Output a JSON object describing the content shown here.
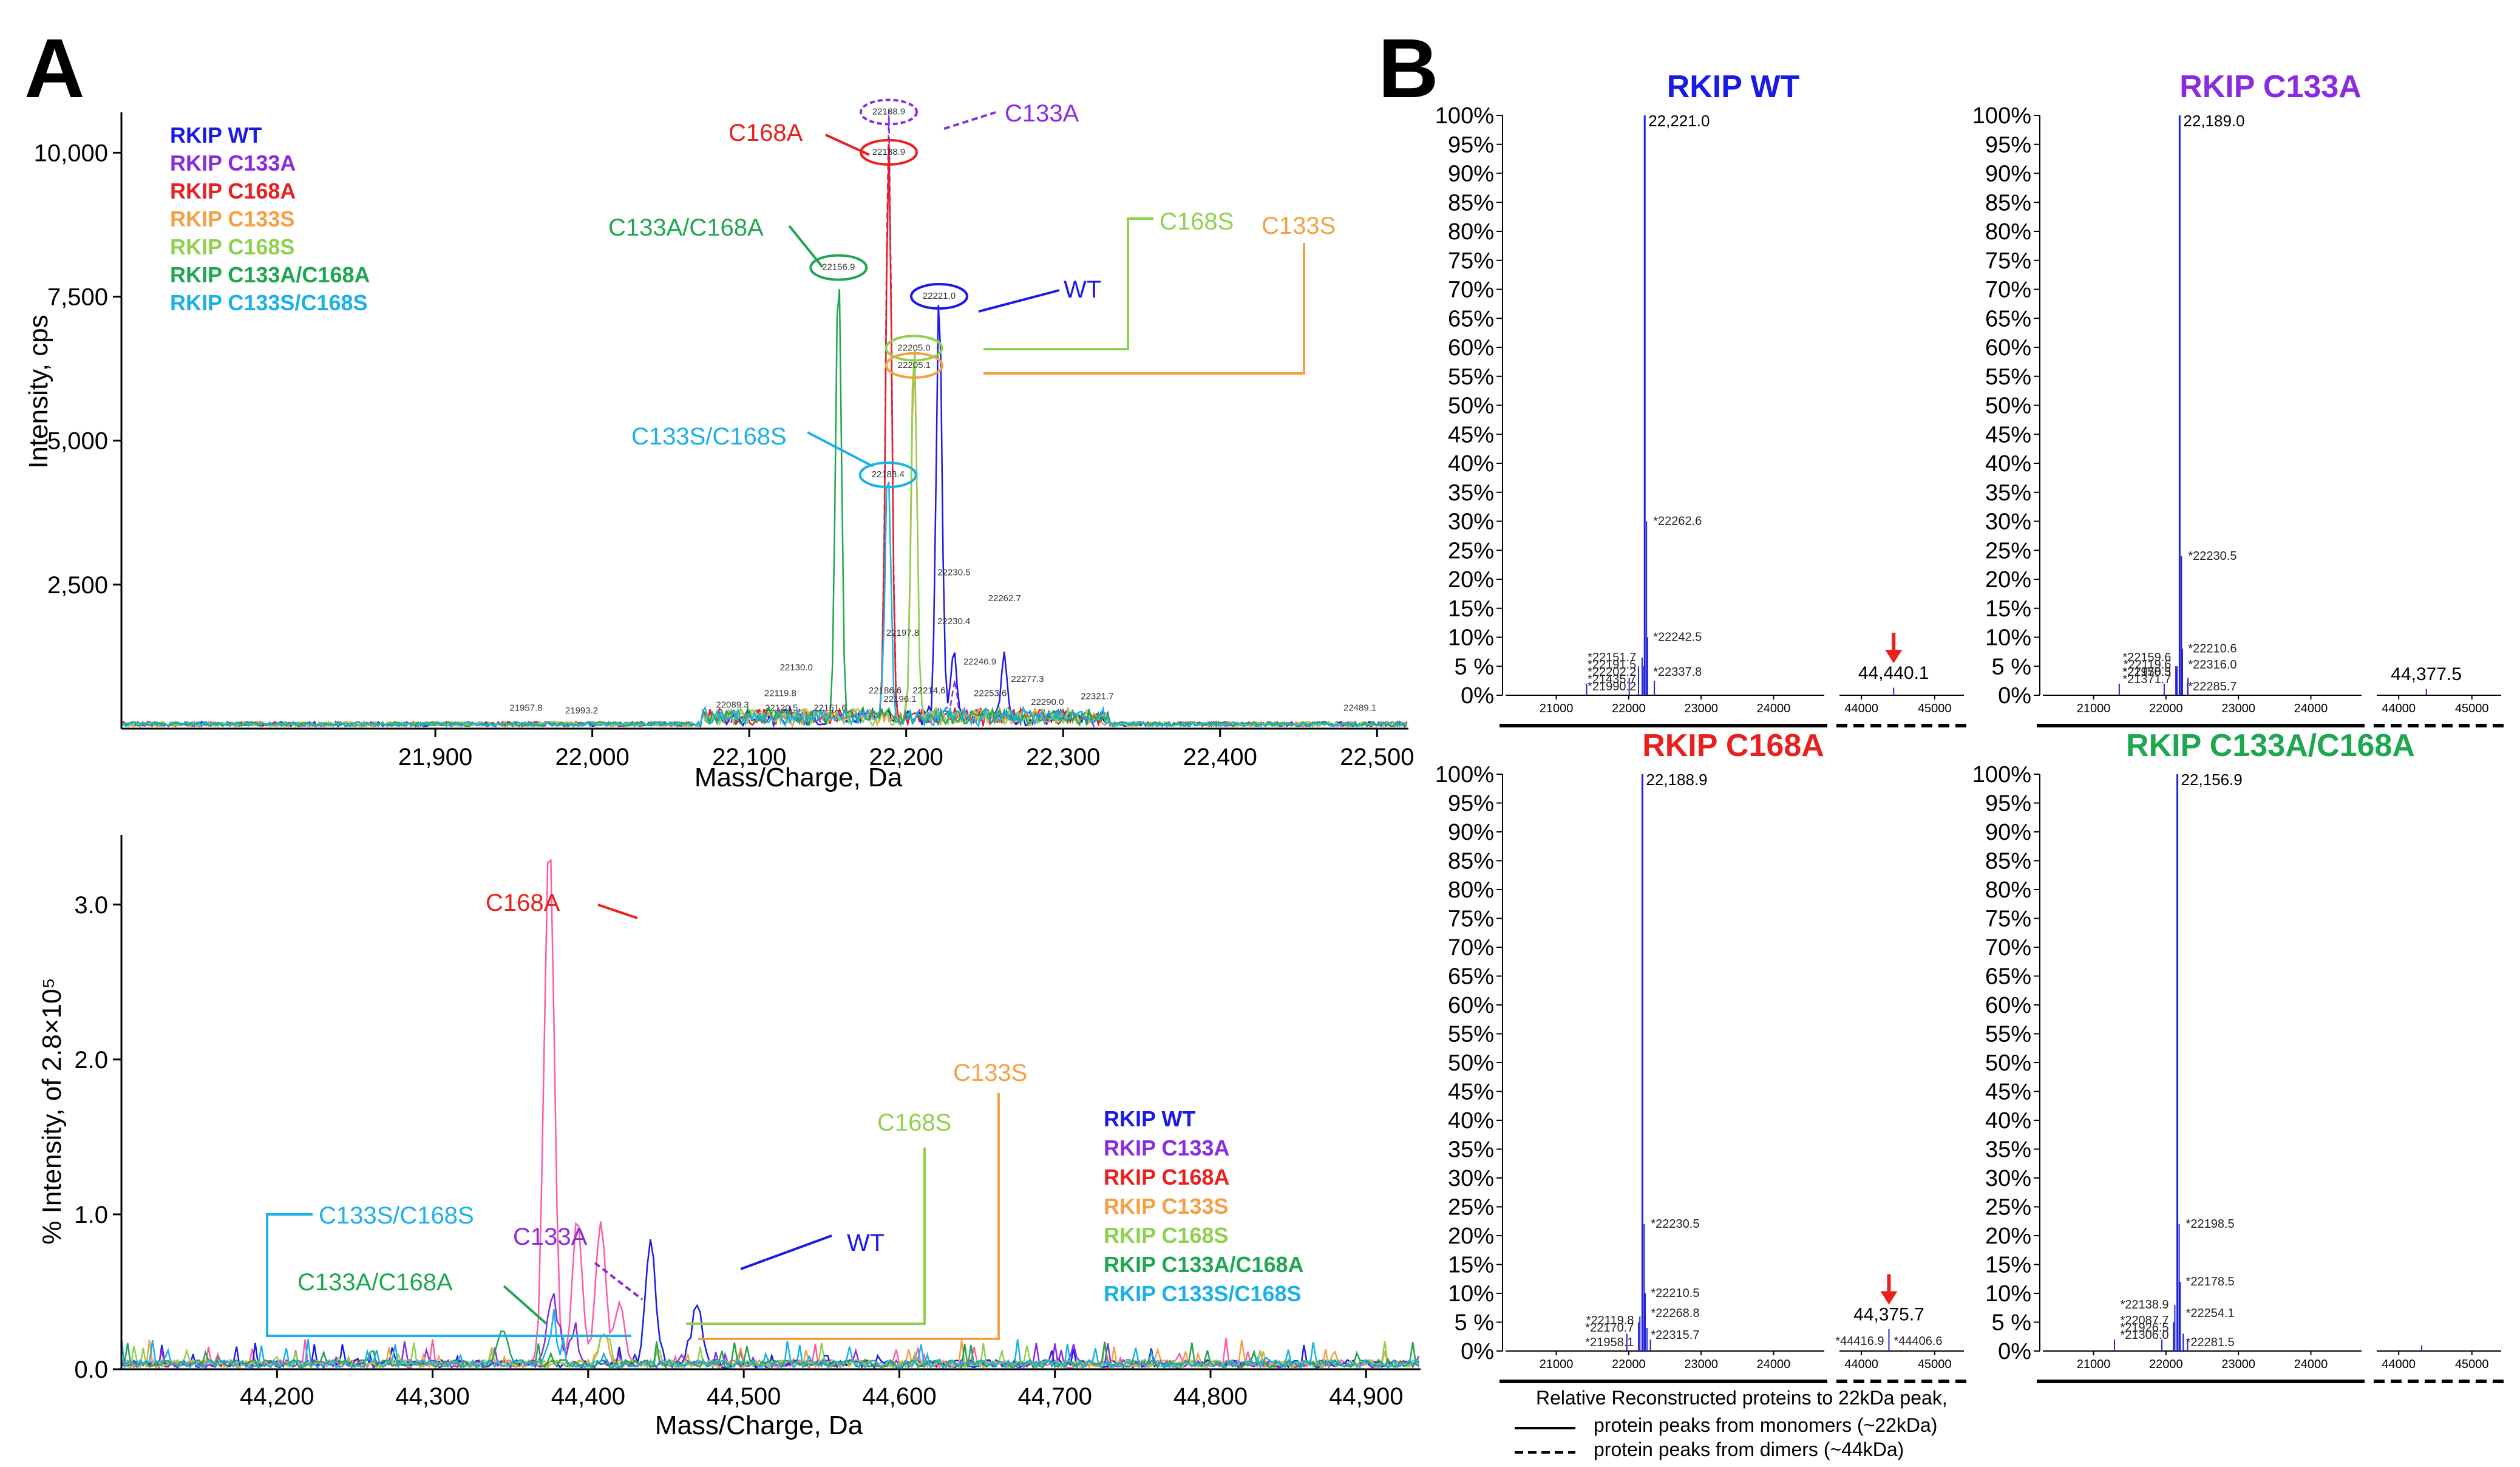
{
  "colors": {
    "WT": "#1a1ae6",
    "C133A": "#8a2be2",
    "C168A": "#e8201e",
    "C133S": "#f5a042",
    "C168S": "#8fd14f",
    "C133A/C168A": "#1fa650",
    "C133S/C168S": "#1ab0e8",
    "pinkTrace": "#ff5aa8",
    "marker": "#e8201e"
  },
  "panelA": {
    "letter": "A",
    "legend": [
      "RKIP WT",
      "RKIP C133A",
      "RKIP C168A",
      "RKIP C133S",
      "RKIP C168S",
      "RKIP C133A/C168A",
      "RKIP C133S/C168S"
    ],
    "legend_keys": [
      "WT",
      "C133A",
      "C168A",
      "C133S",
      "C168S",
      "C133A/C168A",
      "C133S/C168S"
    ]
  },
  "panelB": {
    "letter": "B",
    "titles": [
      "RKIP WT",
      "RKIP C133A",
      "RKIP C168A",
      "RKIP C133A/C168A"
    ],
    "title_keys": [
      "WT",
      "C133A",
      "C168A",
      "C133A/C168A"
    ],
    "yticks": [
      "100%",
      "95%",
      "90%",
      "85%",
      "80%",
      "75%",
      "70%",
      "65%",
      "60%",
      "55%",
      "50%",
      "45%",
      "40%",
      "35%",
      "30%",
      "25%",
      "20%",
      "15%",
      "10%",
      "5 %",
      "0%"
    ],
    "mono_xticks": [
      "21000",
      "22000",
      "23000",
      "24000"
    ],
    "dimer_xticks": [
      "44000",
      "45000"
    ],
    "note_title": "Relative Reconstructed proteins to 22kDa peak,",
    "note_solid": "protein peaks from monomers (~22kDa)",
    "note_dashed": "protein peaks from dimers (~44kDa)"
  },
  "chart_data": [
    {
      "type": "line",
      "panel": "A-top",
      "xlabel": "Mass/Charge, Da",
      "ylabel": "Intensity, cps",
      "xlim": [
        21700,
        22520
      ],
      "ylim": [
        0,
        10700
      ],
      "xticks": [
        "21,900",
        "22,000",
        "22,100",
        "22,200",
        "22,300",
        "22,400",
        "22,500"
      ],
      "yticks": [
        "2,500",
        "5,000",
        "7,500",
        "10,000"
      ],
      "series": [
        {
          "name": "WT",
          "peaks": [
            [
              22221.0,
              7400
            ],
            [
              22262.7,
              1000
            ],
            [
              22230.5,
              1100
            ]
          ]
        },
        {
          "name": "C133A",
          "peaks": [
            [
              22188.9,
              10600
            ],
            [
              22230.4,
              600
            ]
          ]
        },
        {
          "name": "C168A",
          "peaks": [
            [
              22188.9,
              9900
            ]
          ]
        },
        {
          "name": "C133S",
          "peaks": [
            [
              22205.1,
              6200
            ]
          ]
        },
        {
          "name": "C168S",
          "peaks": [
            [
              22205.0,
              6500
            ]
          ]
        },
        {
          "name": "C133A/C168A",
          "peaks": [
            [
              22156.9,
              7900
            ]
          ]
        },
        {
          "name": "C133S/C168S",
          "peaks": [
            [
              22188.4,
              4300
            ]
          ]
        }
      ],
      "peak_labels": [
        {
          "x": 22188.9,
          "y": 10600,
          "text": "22188.9"
        },
        {
          "x": 22188.9,
          "y": 9900,
          "text": "22188.9"
        },
        {
          "x": 22156.9,
          "y": 7900,
          "text": "22156.9"
        },
        {
          "x": 22221.0,
          "y": 7400,
          "text": "22221.0"
        },
        {
          "x": 22205.0,
          "y": 6500,
          "text": "22205.0"
        },
        {
          "x": 22205.1,
          "y": 6200,
          "text": "22205.1"
        },
        {
          "x": 22188.4,
          "y": 4300,
          "text": "22188.4"
        },
        {
          "x": 22230.5,
          "y": 2600,
          "text": "22230.5"
        },
        {
          "x": 22262.7,
          "y": 2150,
          "text": "22262.7"
        },
        {
          "x": 22230.4,
          "y": 1750,
          "text": "22230.4"
        },
        {
          "x": 22197.8,
          "y": 1550,
          "text": "22197.8"
        },
        {
          "x": 22246.9,
          "y": 1050,
          "text": "22246.9"
        },
        {
          "x": 22130.0,
          "y": 950,
          "text": "22130.0"
        },
        {
          "x": 22277.3,
          "y": 750,
          "text": "22277.3"
        },
        {
          "x": 22186.6,
          "y": 550,
          "text": "22186.6"
        },
        {
          "x": 22214.6,
          "y": 550,
          "text": "22214.6"
        },
        {
          "x": 22253.6,
          "y": 500,
          "text": "22253.6"
        },
        {
          "x": 22119.8,
          "y": 500,
          "text": "22119.8"
        },
        {
          "x": 22321.7,
          "y": 450,
          "text": "22321.7"
        },
        {
          "x": 22196.1,
          "y": 400,
          "text": "22196.1"
        },
        {
          "x": 22290.0,
          "y": 350,
          "text": "22290.0"
        },
        {
          "x": 22089.3,
          "y": 300,
          "text": "22089.3"
        },
        {
          "x": 22120.5,
          "y": 250,
          "text": "22120.5"
        },
        {
          "x": 22151.6,
          "y": 250,
          "text": "22151.6"
        },
        {
          "x": 21957.8,
          "y": 250,
          "text": "21957.8"
        },
        {
          "x": 21993.2,
          "y": 200,
          "text": "21993.2"
        },
        {
          "x": 22489.1,
          "y": 250,
          "text": "22489.1"
        }
      ],
      "callouts": [
        "C168A",
        "C133A",
        "C133A/C168A",
        "C168S",
        "C133S",
        "WT",
        "C133S/C168S"
      ]
    },
    {
      "type": "line",
      "panel": "A-bottom",
      "xlabel": "Mass/Charge, Da",
      "ylabel": "% Intensity, of 2.8×10⁵",
      "xlim": [
        44100,
        44935
      ],
      "ylim": [
        0,
        3.45
      ],
      "xticks": [
        "44,200",
        "44,300",
        "44,400",
        "44,500",
        "44,600",
        "44,700",
        "44,800",
        "44,900"
      ],
      "yticks": [
        "0.0",
        "1.0",
        "2.0",
        "3.0"
      ],
      "series": [
        {
          "name": "C168A",
          "peaks": [
            [
              44375,
              3.4
            ],
            [
              44393,
              0.95
            ],
            [
              44408,
              0.9
            ],
            [
              44420,
              0.4
            ]
          ]
        },
        {
          "name": "WT",
          "peaks": [
            [
              44440,
              0.8
            ],
            [
              44470,
              0.4
            ]
          ]
        },
        {
          "name": "C133A",
          "peaks": [
            [
              44377,
              0.45
            ],
            [
              44390,
              0.15
            ]
          ]
        },
        {
          "name": "C133S",
          "peaks": [
            [
              44410,
              0.2
            ]
          ]
        },
        {
          "name": "C168S",
          "peaks": [
            [
              44410,
              0.18
            ]
          ]
        },
        {
          "name": "C133A/C168A",
          "peaks": [
            [
              44345,
              0.2
            ]
          ]
        },
        {
          "name": "C133S/C168S",
          "peaks": [
            [
              44377,
              0.2
            ]
          ]
        }
      ],
      "callouts": [
        "C168A",
        "C133S",
        "C168S",
        "WT",
        "C133S/C168S",
        "C133A",
        "C133A/C168A"
      ],
      "legend": [
        "RKIP WT",
        "RKIP C133A",
        "RKIP C168A",
        "RKIP C133S",
        "RKIP C168S",
        "RKIP C133A/C168A",
        "RKIP C133S/C168S"
      ]
    },
    {
      "type": "line",
      "panel": "B",
      "ylabel": "",
      "xlim_monomer": [
        20300,
        24700
      ],
      "xlim_dimer": [
        43700,
        45400
      ],
      "ylim": [
        0,
        100
      ],
      "subplots": [
        {
          "title": "RKIP WT",
          "main_peak": [
            22221.0,
            100
          ],
          "main_label": "22,221.0",
          "minor": [
            [
              22262.6,
              30
            ],
            [
              22242.5,
              10
            ],
            [
              22202.2,
              6.5
            ],
            [
              22191.5,
              5
            ],
            [
              22151.7,
              5
            ],
            [
              21990.2,
              3
            ],
            [
              21435.7,
              2
            ],
            [
              22337.8,
              2.5
            ]
          ],
          "minor_labels": [
            "*22262.6",
            "*22242.5",
            "*22202.2",
            "*22191.5",
            "*22151.7",
            "*21990.2",
            "*21435.7",
            "*22337.8"
          ],
          "dimer_label": "44,440.1",
          "dimer_peak": [
            44440.1,
            0.5
          ],
          "arrow": true
        },
        {
          "title": "RKIP C133A",
          "main_peak": [
            22189.0,
            100
          ],
          "main_label": "22,189.0",
          "minor": [
            [
              22230.5,
              24
            ],
            [
              22210.6,
              8
            ],
            [
              22170.3,
              5
            ],
            [
              22119.6,
              5
            ],
            [
              22159.6,
              4
            ],
            [
              22285.7,
              3
            ],
            [
              21371.7,
              2
            ],
            [
              21958.5,
              2
            ],
            [
              22316.0,
              2
            ]
          ],
          "minor_labels": [
            "*22230.5",
            "*22210.6",
            "*22170.3",
            "*22119.6",
            "*22159.6",
            "*22285.7",
            "*21371.7",
            "*21958.5",
            "*22316.0"
          ],
          "dimer_label": "44,377.5",
          "dimer_peak": [
            44377.5,
            0.3
          ],
          "arrow": false
        },
        {
          "title": "RKIP C168A",
          "main_peak": [
            22188.9,
            100
          ],
          "main_label": "22,188.9",
          "minor": [
            [
              22230.5,
              22
            ],
            [
              22210.5,
              10
            ],
            [
              22170.7,
              6
            ],
            [
              22119.8,
              5
            ],
            [
              22268.8,
              4
            ],
            [
              21958.1,
              3
            ],
            [
              22315.7,
              2
            ]
          ],
          "minor_labels": [
            "*22230.5",
            "*22210.5",
            "*22170.7",
            "*22119.8",
            "*22268.8",
            "*21958.1",
            "*22315.7"
          ],
          "dimer_label": "44,375.7",
          "dimer_peak": [
            44375.7,
            3
          ],
          "dimer_minor_labels": [
            "*44416.9",
            "*44406.6"
          ],
          "arrow": true
        },
        {
          "title": "RKIP C133A/C168A",
          "main_peak": [
            22156.9,
            100
          ],
          "main_label": "22,156.9",
          "minor": [
            [
              22198.5,
              22
            ],
            [
              22178.5,
              12
            ],
            [
              22138.9,
              8
            ],
            [
              22087.7,
              5
            ],
            [
              22254.1,
              3
            ],
            [
              22281.5,
              2
            ],
            [
              21306.0,
              2
            ],
            [
              21926.5,
              2
            ]
          ],
          "minor_labels": [
            "*22198.5",
            "*22178.5",
            "*22138.9",
            "*22087.7",
            "*22254.1",
            "*22281.5",
            "*21306.0",
            "*21926.5"
          ],
          "dimer_label": "",
          "dimer_peak": [
            44313.0,
            0.2
          ],
          "arrow": false
        }
      ]
    }
  ]
}
